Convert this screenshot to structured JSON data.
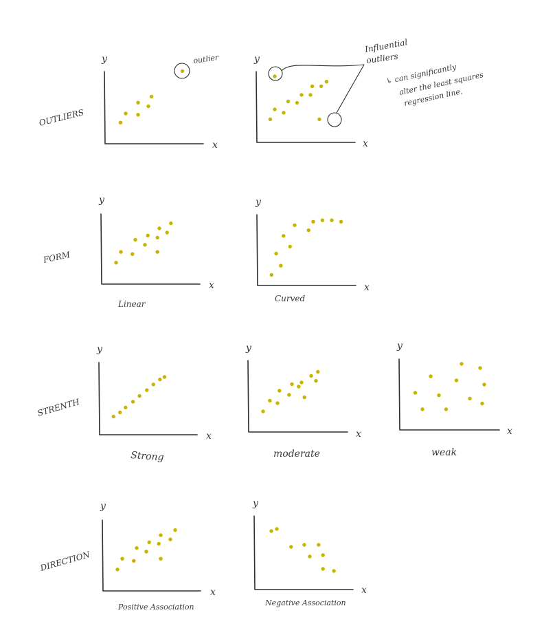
{
  "colors": {
    "dot": "#c8b400",
    "ink": "#2f2f2f",
    "background": "#ffffff"
  },
  "rows": [
    {
      "label": "OUTLIERS"
    },
    {
      "label": "FORM"
    },
    {
      "label": "STRENTH"
    },
    {
      "label": "DIRECTION"
    }
  ],
  "plots": {
    "outlier": {
      "y_label": "y",
      "x_label": "x",
      "annotation": "outlier",
      "points": [
        [
          0.15,
          0.35
        ],
        [
          0.2,
          0.5
        ],
        [
          0.32,
          0.48
        ],
        [
          0.32,
          0.68
        ],
        [
          0.42,
          0.62
        ],
        [
          0.45,
          0.78
        ],
        [
          0.75,
          1.2
        ]
      ]
    },
    "influential": {
      "y_label": "y",
      "x_label": "x",
      "annotation_lines": [
        "Influential",
        "outliers"
      ],
      "note_lines": [
        "↳ can significantly",
        "alter the least squares",
        "regression line."
      ],
      "points": [
        [
          0.15,
          0.35
        ],
        [
          0.2,
          0.5
        ],
        [
          0.3,
          0.45
        ],
        [
          0.35,
          0.62
        ],
        [
          0.45,
          0.6
        ],
        [
          0.5,
          0.72
        ],
        [
          0.6,
          0.72
        ],
        [
          0.62,
          0.85
        ],
        [
          0.72,
          0.85
        ],
        [
          0.78,
          0.92
        ],
        [
          0.2,
          1.0
        ],
        [
          0.7,
          0.35
        ]
      ]
    },
    "linear": {
      "y_label": "y",
      "x_label": "x",
      "caption": "Linear",
      "points": [
        [
          0.15,
          0.3
        ],
        [
          0.2,
          0.45
        ],
        [
          0.32,
          0.42
        ],
        [
          0.35,
          0.62
        ],
        [
          0.45,
          0.55
        ],
        [
          0.48,
          0.68
        ],
        [
          0.58,
          0.65
        ],
        [
          0.6,
          0.78
        ],
        [
          0.58,
          0.45
        ],
        [
          0.68,
          0.72
        ],
        [
          0.72,
          0.85
        ]
      ]
    },
    "curved": {
      "y_label": "y",
      "x_label": "x",
      "caption": "Curved",
      "points": [
        [
          0.15,
          0.15
        ],
        [
          0.2,
          0.45
        ],
        [
          0.25,
          0.28
        ],
        [
          0.28,
          0.7
        ],
        [
          0.35,
          0.55
        ],
        [
          0.4,
          0.85
        ],
        [
          0.55,
          0.78
        ],
        [
          0.6,
          0.9
        ],
        [
          0.7,
          0.92
        ],
        [
          0.8,
          0.92
        ],
        [
          0.9,
          0.9
        ]
      ]
    },
    "strong": {
      "y_label": "y",
      "x_label": "x",
      "caption": "Strong",
      "points": [
        [
          0.15,
          0.22
        ],
        [
          0.22,
          0.27
        ],
        [
          0.28,
          0.33
        ],
        [
          0.36,
          0.4
        ],
        [
          0.43,
          0.47
        ],
        [
          0.51,
          0.54
        ],
        [
          0.58,
          0.61
        ],
        [
          0.65,
          0.67
        ],
        [
          0.7,
          0.7
        ]
      ]
    },
    "moderate": {
      "y_label": "y",
      "x_label": "x",
      "caption": "moderate",
      "points": [
        [
          0.15,
          0.25
        ],
        [
          0.22,
          0.38
        ],
        [
          0.3,
          0.35
        ],
        [
          0.32,
          0.5
        ],
        [
          0.42,
          0.45
        ],
        [
          0.45,
          0.58
        ],
        [
          0.52,
          0.55
        ],
        [
          0.55,
          0.6
        ],
        [
          0.58,
          0.42
        ],
        [
          0.65,
          0.68
        ],
        [
          0.7,
          0.62
        ],
        [
          0.72,
          0.73
        ]
      ]
    },
    "weak": {
      "y_label": "y",
      "x_label": "x",
      "caption": "weak",
      "points": [
        [
          0.15,
          0.45
        ],
        [
          0.22,
          0.25
        ],
        [
          0.3,
          0.65
        ],
        [
          0.38,
          0.42
        ],
        [
          0.45,
          0.25
        ],
        [
          0.55,
          0.6
        ],
        [
          0.6,
          0.8
        ],
        [
          0.68,
          0.38
        ],
        [
          0.78,
          0.75
        ],
        [
          0.82,
          0.55
        ],
        [
          0.8,
          0.32
        ]
      ]
    },
    "positive": {
      "y_label": "y",
      "x_label": "x",
      "caption": "Positive Association",
      "points": [
        [
          0.15,
          0.3
        ],
        [
          0.2,
          0.45
        ],
        [
          0.32,
          0.42
        ],
        [
          0.35,
          0.6
        ],
        [
          0.45,
          0.55
        ],
        [
          0.48,
          0.68
        ],
        [
          0.58,
          0.66
        ],
        [
          0.6,
          0.78
        ],
        [
          0.6,
          0.45
        ],
        [
          0.7,
          0.72
        ],
        [
          0.75,
          0.85
        ]
      ]
    },
    "negative": {
      "y_label": "y",
      "x_label": "x",
      "caption": "Negative Association",
      "points": [
        [
          0.15,
          0.85
        ],
        [
          0.2,
          0.88
        ],
        [
          0.33,
          0.62
        ],
        [
          0.45,
          0.65
        ],
        [
          0.5,
          0.48
        ],
        [
          0.58,
          0.65
        ],
        [
          0.62,
          0.5
        ],
        [
          0.62,
          0.3
        ],
        [
          0.72,
          0.27
        ]
      ]
    }
  }
}
